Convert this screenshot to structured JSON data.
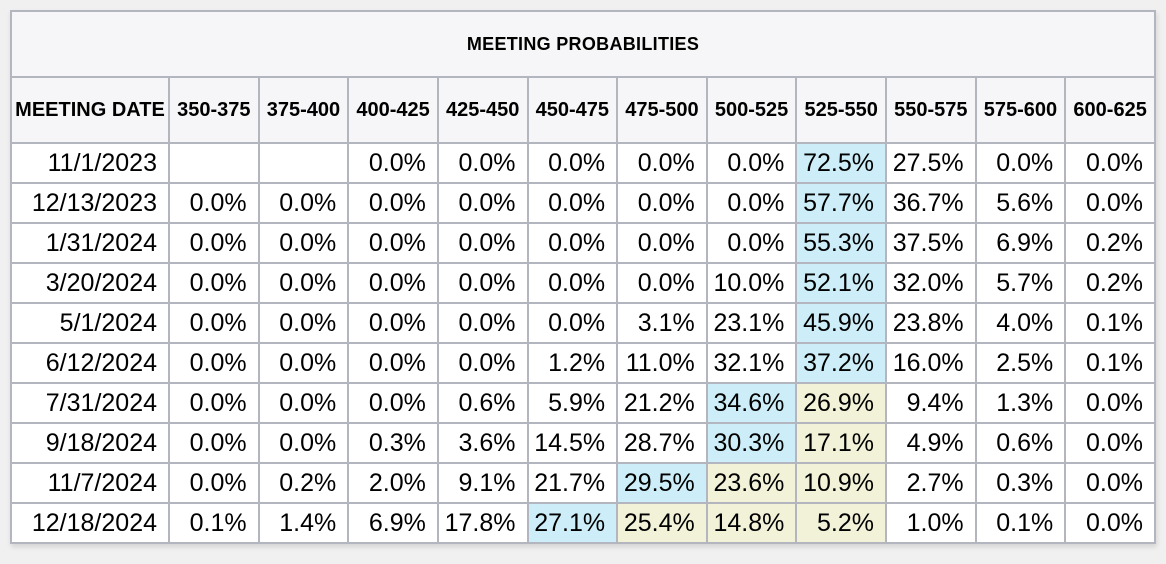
{
  "title": "MEETING PROBABILITIES",
  "columns": [
    "MEETING DATE",
    "350-375",
    "375-400",
    "400-425",
    "425-450",
    "450-475",
    "475-500",
    "500-525",
    "525-550",
    "550-575",
    "575-600",
    "600-625"
  ],
  "rows": [
    {
      "date": "11/1/2023",
      "values": [
        "",
        "",
        "0.0%",
        "0.0%",
        "0.0%",
        "0.0%",
        "0.0%",
        "72.5%",
        "27.5%",
        "0.0%",
        "0.0%"
      ],
      "highlights": [
        "",
        "",
        "",
        "",
        "",
        "",
        "",
        "blue",
        "",
        "",
        ""
      ]
    },
    {
      "date": "12/13/2023",
      "values": [
        "0.0%",
        "0.0%",
        "0.0%",
        "0.0%",
        "0.0%",
        "0.0%",
        "0.0%",
        "57.7%",
        "36.7%",
        "5.6%",
        "0.0%"
      ],
      "highlights": [
        "",
        "",
        "",
        "",
        "",
        "",
        "",
        "blue",
        "",
        "",
        ""
      ]
    },
    {
      "date": "1/31/2024",
      "values": [
        "0.0%",
        "0.0%",
        "0.0%",
        "0.0%",
        "0.0%",
        "0.0%",
        "0.0%",
        "55.3%",
        "37.5%",
        "6.9%",
        "0.2%"
      ],
      "highlights": [
        "",
        "",
        "",
        "",
        "",
        "",
        "",
        "blue",
        "",
        "",
        ""
      ]
    },
    {
      "date": "3/20/2024",
      "values": [
        "0.0%",
        "0.0%",
        "0.0%",
        "0.0%",
        "0.0%",
        "0.0%",
        "10.0%",
        "52.1%",
        "32.0%",
        "5.7%",
        "0.2%"
      ],
      "highlights": [
        "",
        "",
        "",
        "",
        "",
        "",
        "",
        "blue",
        "",
        "",
        ""
      ]
    },
    {
      "date": "5/1/2024",
      "values": [
        "0.0%",
        "0.0%",
        "0.0%",
        "0.0%",
        "0.0%",
        "3.1%",
        "23.1%",
        "45.9%",
        "23.8%",
        "4.0%",
        "0.1%"
      ],
      "highlights": [
        "",
        "",
        "",
        "",
        "",
        "",
        "",
        "blue",
        "",
        "",
        ""
      ]
    },
    {
      "date": "6/12/2024",
      "values": [
        "0.0%",
        "0.0%",
        "0.0%",
        "0.0%",
        "1.2%",
        "11.0%",
        "32.1%",
        "37.2%",
        "16.0%",
        "2.5%",
        "0.1%"
      ],
      "highlights": [
        "",
        "",
        "",
        "",
        "",
        "",
        "",
        "blue",
        "",
        "",
        ""
      ]
    },
    {
      "date": "7/31/2024",
      "values": [
        "0.0%",
        "0.0%",
        "0.0%",
        "0.6%",
        "5.9%",
        "21.2%",
        "34.6%",
        "26.9%",
        "9.4%",
        "1.3%",
        "0.0%"
      ],
      "highlights": [
        "",
        "",
        "",
        "",
        "",
        "",
        "blue",
        "yellow",
        "",
        "",
        ""
      ]
    },
    {
      "date": "9/18/2024",
      "values": [
        "0.0%",
        "0.0%",
        "0.3%",
        "3.6%",
        "14.5%",
        "28.7%",
        "30.3%",
        "17.1%",
        "4.9%",
        "0.6%",
        "0.0%"
      ],
      "highlights": [
        "",
        "",
        "",
        "",
        "",
        "",
        "blue",
        "yellow",
        "",
        "",
        ""
      ]
    },
    {
      "date": "11/7/2024",
      "values": [
        "0.0%",
        "0.2%",
        "2.0%",
        "9.1%",
        "21.7%",
        "29.5%",
        "23.6%",
        "10.9%",
        "2.7%",
        "0.3%",
        "0.0%"
      ],
      "highlights": [
        "",
        "",
        "",
        "",
        "",
        "blue",
        "yellow",
        "yellow",
        "",
        "",
        ""
      ]
    },
    {
      "date": "12/18/2024",
      "values": [
        "0.1%",
        "1.4%",
        "6.9%",
        "17.8%",
        "27.1%",
        "25.4%",
        "14.8%",
        "5.2%",
        "1.0%",
        "0.1%",
        "0.0%"
      ],
      "highlights": [
        "",
        "",
        "",
        "",
        "blue",
        "yellow",
        "yellow",
        "yellow",
        "",
        "",
        ""
      ]
    }
  ],
  "colors": {
    "highlight_blue": "#cdeef8",
    "highlight_yellow": "#f2f2d8",
    "header_bg": "#f6f6f8",
    "grid_line": "#b3b6bf",
    "page_bg": "#f0f0f1"
  },
  "chart_data": {
    "type": "table",
    "title": "MEETING PROBABILITIES",
    "categories": [
      "350-375",
      "375-400",
      "400-425",
      "425-450",
      "450-475",
      "475-500",
      "500-525",
      "525-550",
      "550-575",
      "575-600",
      "600-625"
    ],
    "series": [
      {
        "name": "11/1/2023",
        "values": [
          null,
          null,
          0.0,
          0.0,
          0.0,
          0.0,
          0.0,
          72.5,
          27.5,
          0.0,
          0.0
        ]
      },
      {
        "name": "12/13/2023",
        "values": [
          0.0,
          0.0,
          0.0,
          0.0,
          0.0,
          0.0,
          0.0,
          57.7,
          36.7,
          5.6,
          0.0
        ]
      },
      {
        "name": "1/31/2024",
        "values": [
          0.0,
          0.0,
          0.0,
          0.0,
          0.0,
          0.0,
          0.0,
          55.3,
          37.5,
          6.9,
          0.2
        ]
      },
      {
        "name": "3/20/2024",
        "values": [
          0.0,
          0.0,
          0.0,
          0.0,
          0.0,
          0.0,
          10.0,
          52.1,
          32.0,
          5.7,
          0.2
        ]
      },
      {
        "name": "5/1/2024",
        "values": [
          0.0,
          0.0,
          0.0,
          0.0,
          0.0,
          3.1,
          23.1,
          45.9,
          23.8,
          4.0,
          0.1
        ]
      },
      {
        "name": "6/12/2024",
        "values": [
          0.0,
          0.0,
          0.0,
          0.0,
          1.2,
          11.0,
          32.1,
          37.2,
          16.0,
          2.5,
          0.1
        ]
      },
      {
        "name": "7/31/2024",
        "values": [
          0.0,
          0.0,
          0.0,
          0.6,
          5.9,
          21.2,
          34.6,
          26.9,
          9.4,
          1.3,
          0.0
        ]
      },
      {
        "name": "9/18/2024",
        "values": [
          0.0,
          0.0,
          0.3,
          3.6,
          14.5,
          28.7,
          30.3,
          17.1,
          4.9,
          0.6,
          0.0
        ]
      },
      {
        "name": "11/7/2024",
        "values": [
          0.0,
          0.2,
          2.0,
          9.1,
          21.7,
          29.5,
          23.6,
          10.9,
          2.7,
          0.3,
          0.0
        ]
      },
      {
        "name": "12/18/2024",
        "values": [
          0.1,
          1.4,
          6.9,
          17.8,
          27.1,
          25.4,
          14.8,
          5.2,
          1.0,
          0.1,
          0.0
        ]
      }
    ],
    "units": "percent"
  }
}
